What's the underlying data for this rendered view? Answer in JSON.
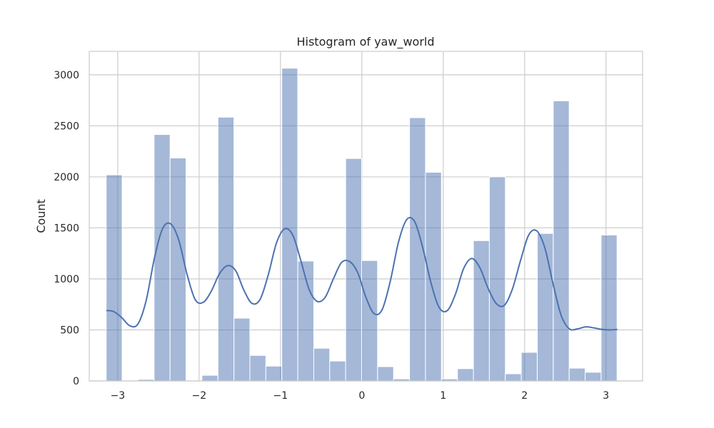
{
  "chart_data": {
    "type": "bar",
    "title": "Histogram of yaw_world",
    "xlabel": "",
    "ylabel": "Count",
    "xlim": [
      -3.35,
      3.45
    ],
    "ylim": [
      0,
      3230
    ],
    "xticks": [
      -3,
      -2,
      -1,
      0,
      1,
      2,
      3
    ],
    "xtick_labels": [
      "−3",
      "−2",
      "−1",
      "0",
      "1",
      "2",
      "3"
    ],
    "yticks": [
      0,
      500,
      1000,
      1500,
      2000,
      2500,
      3000
    ],
    "ytick_labels": [
      "0",
      "500",
      "1000",
      "1500",
      "2000",
      "2500",
      "3000"
    ],
    "grid": true,
    "bar_color": "#4c72b0",
    "bar_opacity": 0.5,
    "line_color": "#4c72b0",
    "bin_width": 0.196,
    "bins": [
      {
        "x0": -3.142,
        "count": 2020
      },
      {
        "x0": -2.946,
        "count": 0
      },
      {
        "x0": -2.75,
        "count": 15
      },
      {
        "x0": -2.553,
        "count": 2415
      },
      {
        "x0": -2.357,
        "count": 2185
      },
      {
        "x0": -2.161,
        "count": 0
      },
      {
        "x0": -1.965,
        "count": 55
      },
      {
        "x0": -1.768,
        "count": 2585
      },
      {
        "x0": -1.572,
        "count": 615
      },
      {
        "x0": -1.376,
        "count": 250
      },
      {
        "x0": -1.18,
        "count": 145
      },
      {
        "x0": -0.984,
        "count": 3065
      },
      {
        "x0": -0.787,
        "count": 1175
      },
      {
        "x0": -0.591,
        "count": 320
      },
      {
        "x0": -0.395,
        "count": 195
      },
      {
        "x0": -0.199,
        "count": 2180
      },
      {
        "x0": -0.003,
        "count": 1180
      },
      {
        "x0": 0.194,
        "count": 140
      },
      {
        "x0": 0.39,
        "count": 20
      },
      {
        "x0": 0.586,
        "count": 2580
      },
      {
        "x0": 0.782,
        "count": 2045
      },
      {
        "x0": 0.978,
        "count": 20
      },
      {
        "x0": 1.175,
        "count": 120
      },
      {
        "x0": 1.371,
        "count": 1375
      },
      {
        "x0": 1.567,
        "count": 2000
      },
      {
        "x0": 1.763,
        "count": 70
      },
      {
        "x0": 1.959,
        "count": 280
      },
      {
        "x0": 2.156,
        "count": 1445
      },
      {
        "x0": 2.352,
        "count": 2745
      },
      {
        "x0": 2.548,
        "count": 125
      },
      {
        "x0": 2.744,
        "count": 85
      },
      {
        "x0": 2.94,
        "count": 1430
      }
    ],
    "kde": {
      "x": [
        -3.14,
        -3.05,
        -2.95,
        -2.85,
        -2.75,
        -2.65,
        -2.55,
        -2.45,
        -2.35,
        -2.25,
        -2.15,
        -2.05,
        -1.95,
        -1.85,
        -1.75,
        -1.65,
        -1.55,
        -1.45,
        -1.35,
        -1.25,
        -1.15,
        -1.05,
        -0.95,
        -0.85,
        -0.75,
        -0.65,
        -0.55,
        -0.45,
        -0.35,
        -0.25,
        -0.15,
        -0.05,
        0.05,
        0.15,
        0.25,
        0.35,
        0.45,
        0.55,
        0.65,
        0.75,
        0.85,
        0.95,
        1.05,
        1.15,
        1.25,
        1.35,
        1.45,
        1.55,
        1.65,
        1.75,
        1.85,
        1.95,
        2.05,
        2.15,
        2.25,
        2.35,
        2.45,
        2.55,
        2.65,
        2.75,
        2.85,
        2.95,
        3.05,
        3.14
      ],
      "y": [
        690,
        680,
        620,
        540,
        560,
        790,
        1200,
        1490,
        1540,
        1380,
        1050,
        800,
        770,
        880,
        1050,
        1130,
        1080,
        890,
        760,
        800,
        1040,
        1350,
        1490,
        1430,
        1180,
        900,
        780,
        820,
        1000,
        1160,
        1170,
        1060,
        820,
        660,
        700,
        980,
        1360,
        1580,
        1560,
        1300,
        960,
        720,
        690,
        850,
        1100,
        1200,
        1110,
        910,
        760,
        740,
        900,
        1180,
        1430,
        1470,
        1300,
        950,
        640,
        510,
        510,
        530,
        520,
        505,
        500,
        505
      ]
    }
  }
}
